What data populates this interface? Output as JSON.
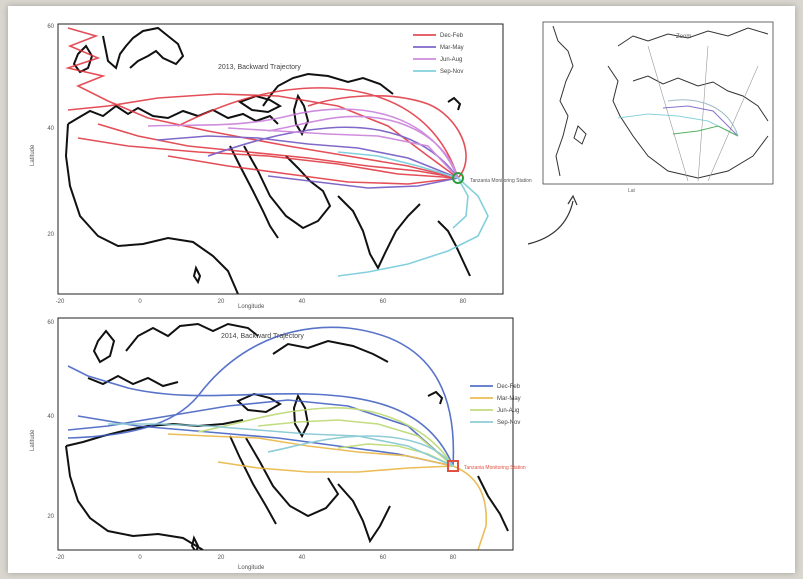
{
  "top_map": {
    "title": "2013, Backward Trajectory",
    "ylabel": "Latitude",
    "xlabel": "Longitude",
    "site_label": "Tanzania Monitoring Station",
    "xticks": [
      "-20",
      "0",
      "20",
      "40",
      "60",
      "80"
    ],
    "yticks": [
      "60",
      "40",
      "20"
    ],
    "legend": [
      {
        "label": "Dec-Feb",
        "color": "#e0303a"
      },
      {
        "label": "Mar-May",
        "color": "#6a4fbf"
      },
      {
        "label": "Jun-Aug",
        "color": "#c77ad8"
      },
      {
        "label": "Sep-Nov",
        "color": "#6fc8d8"
      }
    ]
  },
  "inset_map": {
    "title": "Zoom",
    "note": "Lat"
  },
  "bottom_map": {
    "title": "2014, Backward Trajectory",
    "ylabel": "Latitude",
    "xlabel": "Longitude",
    "site_label": "Tanzania Monitoring Station",
    "xticks": [
      "-20",
      "0",
      "20",
      "40",
      "60",
      "80"
    ],
    "yticks": [
      "60",
      "40",
      "20"
    ],
    "legend": [
      {
        "label": "Dec-Feb",
        "color": "#3b5bbf"
      },
      {
        "label": "Mar-May",
        "color": "#e8b23a"
      },
      {
        "label": "Jun-Aug",
        "color": "#b8d66a"
      },
      {
        "label": "Sep-Nov",
        "color": "#7cc4cf"
      }
    ]
  },
  "colors": {
    "coastline": "#111111",
    "site_top": "#2e9e3a",
    "site_bottom": "#e05040"
  }
}
